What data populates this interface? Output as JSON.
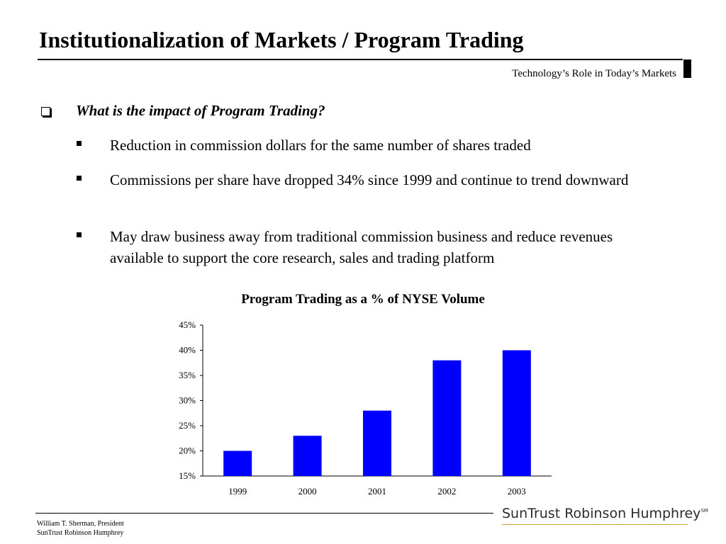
{
  "header": {
    "title": "Institutionalization of Markets / Program Trading",
    "subtitle": "Technology’s Role in Today’s Markets"
  },
  "content": {
    "question": "What is the impact of Program Trading?",
    "bullets": [
      "Reduction in commission dollars for the same number of shares traded",
      "Commissions per share have dropped 34% since 1999 and continue to trend downward",
      "May draw business away from traditional commission business and reduce revenues available to support the core research, sales and trading platform"
    ]
  },
  "chart_data": {
    "type": "bar",
    "title": "Program Trading as a % of NYSE Volume",
    "categories": [
      "1999",
      "2000",
      "2001",
      "2002",
      "2003"
    ],
    "values": [
      20,
      23,
      28,
      38,
      40
    ],
    "ylim": [
      15,
      45
    ],
    "yticks": [
      "15%",
      "20%",
      "25%",
      "30%",
      "35%",
      "40%",
      "45%"
    ],
    "bar_color": "#0000ff",
    "grid": false,
    "legend": false
  },
  "footer": {
    "author": "William T. Sherman, President",
    "company": "SunTrust Robinson Humphrey",
    "logo_text": "SunTrust Robinson Humphrey",
    "logo_mark": "SM"
  }
}
